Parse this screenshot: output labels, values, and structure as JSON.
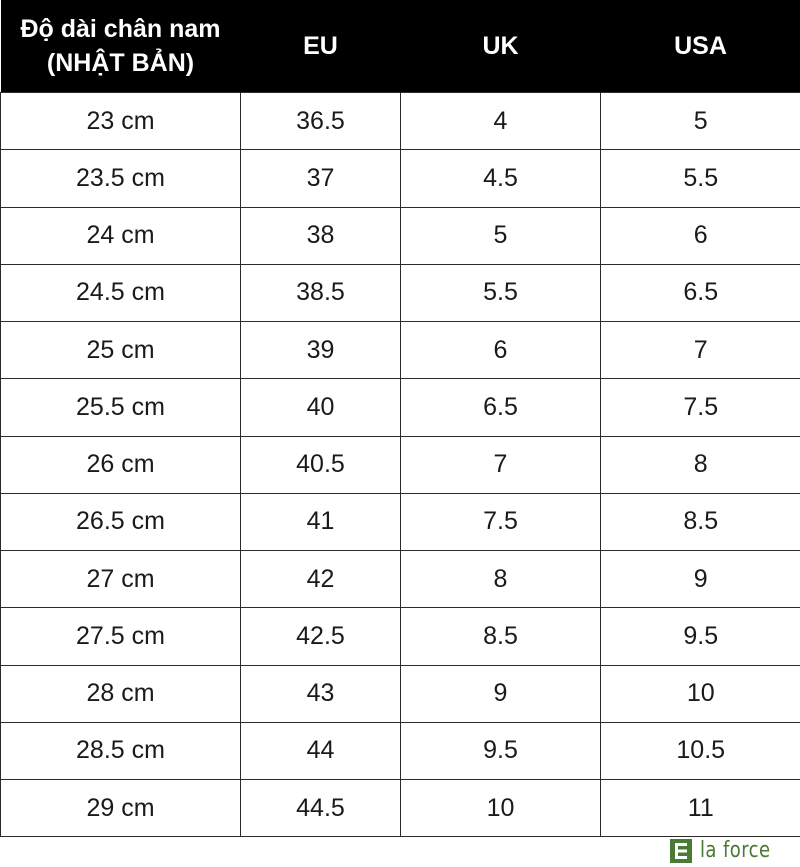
{
  "table": {
    "headers": [
      "Độ dài chân nam\n(NHẬT BẢN)",
      "EU",
      "UK",
      "USA"
    ],
    "header_lines": {
      "col1_line1": "Độ dài chân nam",
      "col1_line2": "(NHẬT BẢN)"
    },
    "rows": [
      [
        "23 cm",
        "36.5",
        "4",
        "5"
      ],
      [
        "23.5 cm",
        "37",
        "4.5",
        "5.5"
      ],
      [
        "24 cm",
        "38",
        "5",
        "6"
      ],
      [
        "24.5 cm",
        "38.5",
        "5.5",
        "6.5"
      ],
      [
        "25 cm",
        "39",
        "6",
        "7"
      ],
      [
        "25.5 cm",
        "40",
        "6.5",
        "7.5"
      ],
      [
        "26 cm",
        "40.5",
        "7",
        "8"
      ],
      [
        "26.5 cm",
        "41",
        "7.5",
        "8.5"
      ],
      [
        "27 cm",
        "42",
        "8",
        "9"
      ],
      [
        "27.5 cm",
        "42.5",
        "8.5",
        "9.5"
      ],
      [
        "28 cm",
        "43",
        "9",
        "10"
      ],
      [
        "28.5 cm",
        "44",
        "9.5",
        "10.5"
      ],
      [
        "29 cm",
        "44.5",
        "10",
        "11"
      ]
    ]
  },
  "brand": {
    "name": "la force",
    "icon": "la-force-logo-icon",
    "color": "#4a7a33"
  },
  "colors": {
    "header_bg": "#000000",
    "header_text": "#ffffff",
    "border": "#2a2a2a"
  }
}
